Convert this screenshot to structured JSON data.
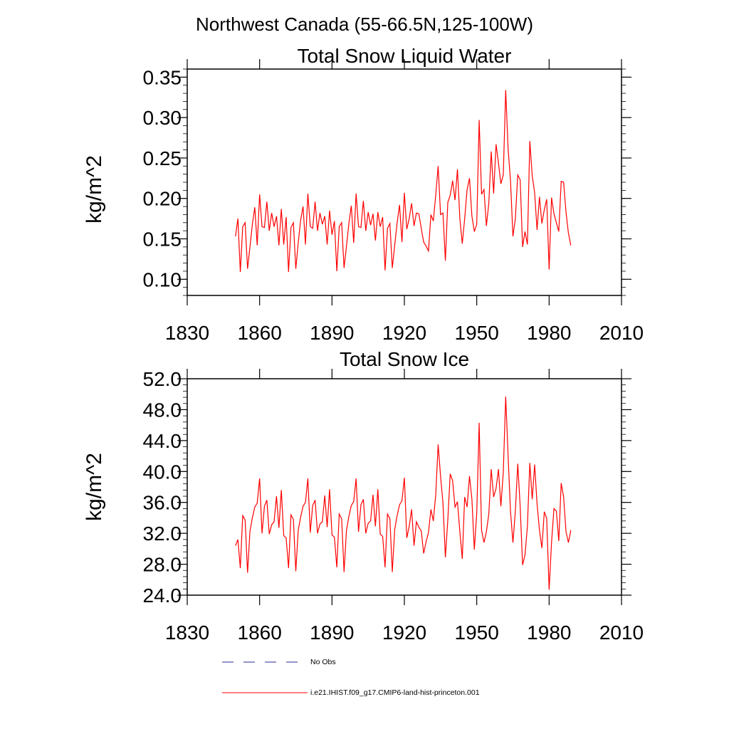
{
  "title": "Northwest Canada (55-66.5N,125-100W)",
  "colors": {
    "model": "#ff0000",
    "obs": "#2a2a9a",
    "axis": "#000000"
  },
  "legend": {
    "entries": [
      {
        "label": "No Obs",
        "style": "dashed",
        "color": "#2a2a9a"
      },
      {
        "label": "i.e21.IHIST.f09_g17.CMIP6-land-hist-princeton.001",
        "style": "solid",
        "color": "#ff0000"
      }
    ]
  },
  "chart_data": [
    {
      "type": "line",
      "title": "Total Snow Liquid Water",
      "ylabel": "kg/m^2",
      "xlim": [
        1830,
        2010
      ],
      "ylim": [
        0.08,
        0.36
      ],
      "xticks": [
        "1830",
        "1860",
        "1890",
        "1920",
        "1950",
        "1980",
        "2010"
      ],
      "yticks": [
        "0.10",
        "0.15",
        "0.20",
        "0.25",
        "0.30",
        "0.35"
      ],
      "x_start": 1850,
      "series": [
        {
          "name": "i.e21.IHIST.f09_g17.CMIP6-land-hist-princeton.001",
          "values": [
            0.153,
            0.175,
            0.109,
            0.165,
            0.17,
            0.113,
            0.14,
            0.168,
            0.189,
            0.142,
            0.205,
            0.165,
            0.164,
            0.196,
            0.16,
            0.182,
            0.165,
            0.178,
            0.142,
            0.187,
            0.143,
            0.177,
            0.109,
            0.164,
            0.17,
            0.113,
            0.145,
            0.173,
            0.19,
            0.143,
            0.206,
            0.165,
            0.163,
            0.196,
            0.16,
            0.182,
            0.168,
            0.178,
            0.143,
            0.185,
            0.155,
            0.172,
            0.11,
            0.165,
            0.17,
            0.114,
            0.141,
            0.169,
            0.191,
            0.145,
            0.206,
            0.165,
            0.164,
            0.197,
            0.16,
            0.183,
            0.167,
            0.181,
            0.148,
            0.183,
            0.165,
            0.177,
            0.111,
            0.163,
            0.169,
            0.114,
            0.142,
            0.17,
            0.192,
            0.146,
            0.207,
            0.162,
            0.175,
            0.194,
            0.166,
            0.182,
            0.181,
            0.163,
            0.146,
            0.141,
            0.135,
            0.18,
            0.172,
            0.204,
            0.24,
            0.18,
            0.182,
            0.123,
            0.195,
            0.204,
            0.222,
            0.198,
            0.236,
            0.175,
            0.144,
            0.175,
            0.211,
            0.225,
            0.178,
            0.159,
            0.168,
            0.297,
            0.205,
            0.211,
            0.166,
            0.194,
            0.258,
            0.206,
            0.267,
            0.244,
            0.218,
            0.229,
            0.334,
            0.261,
            0.222,
            0.153,
            0.175,
            0.229,
            0.223,
            0.14,
            0.159,
            0.143,
            0.271,
            0.228,
            0.207,
            0.161,
            0.202,
            0.169,
            0.186,
            0.199,
            0.112,
            0.201,
            0.181,
            0.17,
            0.159,
            0.221,
            0.22,
            0.183,
            0.157,
            0.142
          ]
        }
      ]
    },
    {
      "type": "line",
      "title": "Total Snow Ice",
      "ylabel": "kg/m^2",
      "xlim": [
        1830,
        2010
      ],
      "ylim": [
        24.0,
        52.0
      ],
      "xticks": [
        "1830",
        "1860",
        "1890",
        "1920",
        "1950",
        "1980",
        "2010"
      ],
      "yticks": [
        "24.0",
        "28.0",
        "32.0",
        "36.0",
        "40.0",
        "44.0",
        "48.0",
        "52.0"
      ],
      "x_start": 1850,
      "series": [
        {
          "name": "i.e21.IHIST.f09_g17.CMIP6-land-hist-princeton.001",
          "values": [
            30.4,
            31.2,
            27.5,
            34.3,
            33.7,
            26.9,
            32.3,
            34.0,
            35.4,
            35.9,
            39.1,
            32.0,
            35.5,
            36.3,
            31.9,
            33.1,
            33.5,
            36.8,
            32.7,
            37.6,
            31.7,
            31.4,
            27.5,
            34.4,
            33.8,
            27.1,
            32.4,
            34.1,
            35.5,
            36.0,
            39.1,
            32.1,
            35.6,
            36.3,
            32.0,
            33.2,
            33.5,
            36.9,
            32.8,
            37.7,
            31.8,
            31.5,
            27.6,
            34.5,
            33.9,
            27.0,
            32.4,
            34.2,
            35.6,
            36.1,
            39.1,
            32.2,
            35.7,
            36.4,
            32.0,
            33.3,
            33.6,
            37.0,
            32.9,
            37.7,
            31.9,
            31.6,
            27.6,
            34.5,
            33.9,
            27.0,
            32.5,
            34.3,
            35.7,
            36.2,
            39.2,
            31.4,
            32.9,
            35.1,
            30.4,
            33.5,
            32.8,
            32.3,
            29.4,
            30.9,
            32.1,
            35.1,
            33.6,
            37.0,
            43.5,
            39.4,
            35.9,
            28.9,
            33.7,
            39.7,
            38.8,
            35.4,
            36.1,
            32.2,
            28.7,
            36.7,
            35.4,
            39.4,
            36.4,
            29.9,
            34.6,
            46.3,
            32.4,
            30.8,
            32.2,
            34.5,
            40.3,
            36.7,
            37.8,
            40.3,
            35.5,
            39.9,
            49.7,
            42.0,
            34.8,
            30.8,
            34.9,
            41.0,
            35.5,
            27.9,
            29.2,
            32.9,
            41.1,
            36.4,
            40.9,
            35.8,
            32.4,
            30.1,
            34.8,
            33.9,
            24.7,
            30.8,
            35.2,
            34.9,
            31.0,
            38.5,
            36.7,
            32.2,
            30.8,
            32.4
          ]
        }
      ]
    }
  ]
}
